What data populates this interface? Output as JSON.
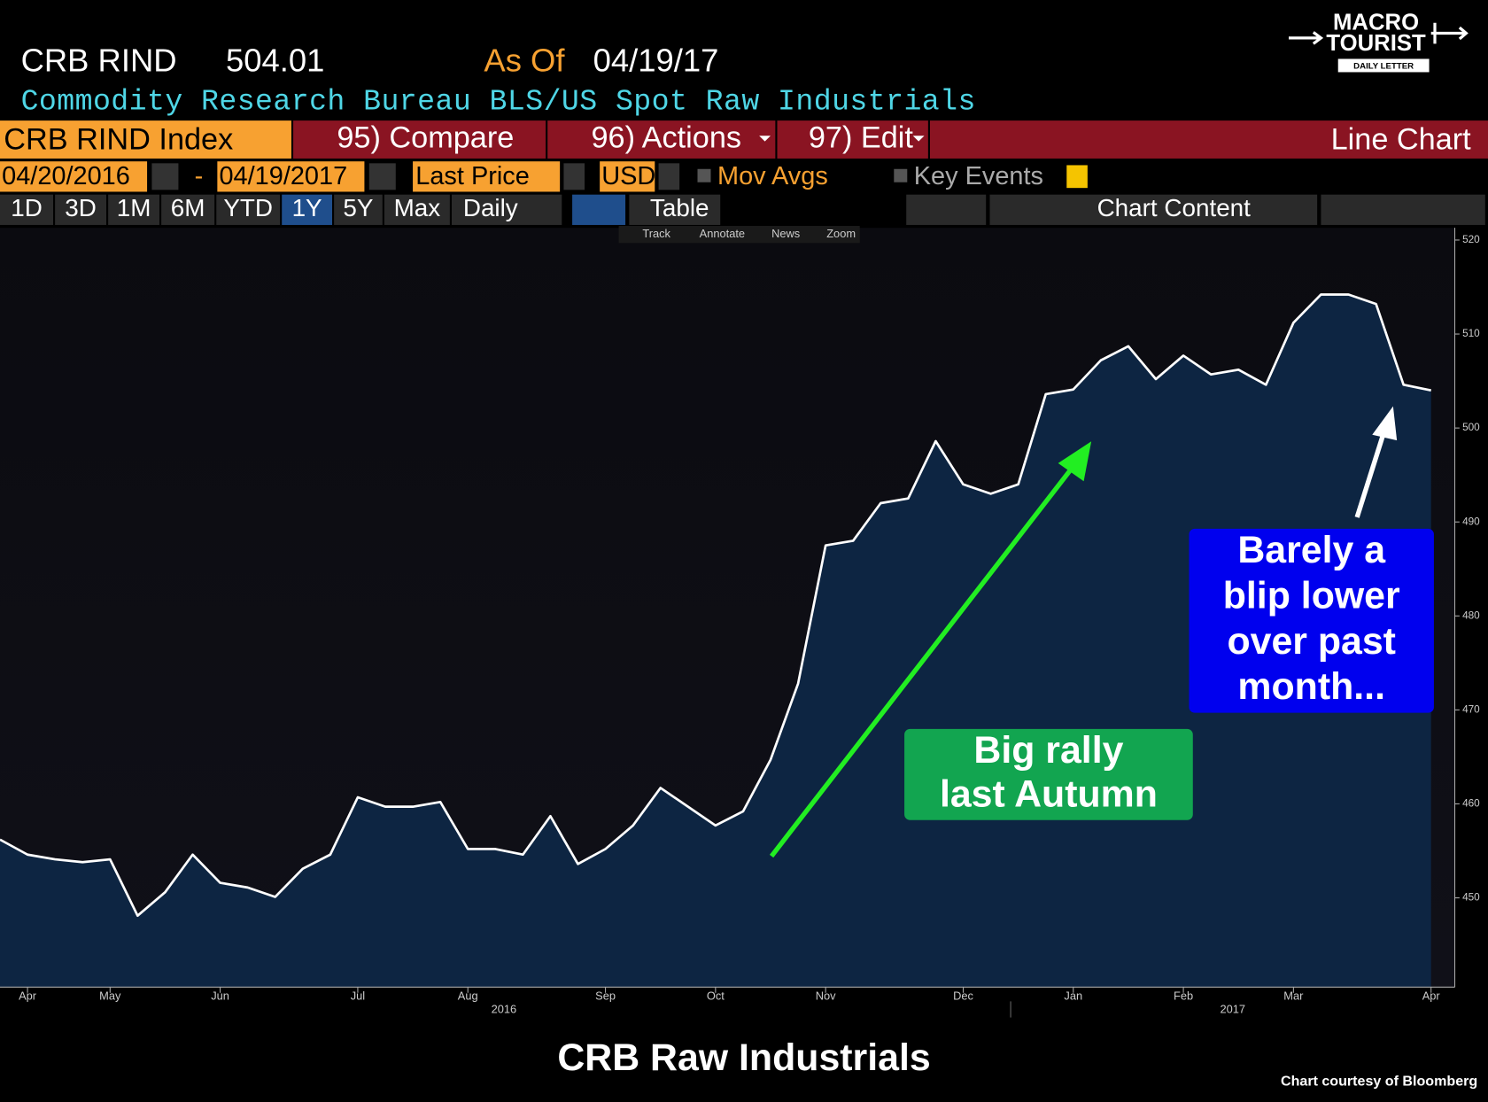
{
  "header": {
    "ticker": "CRB RIND",
    "price": 504.01,
    "as_of_label": "As Of",
    "as_of_date": "04/19/17",
    "description": "Commodity Research Bureau BLS/US Spot Raw Industrials"
  },
  "logo": {
    "line1": "MACRO",
    "line2": "TOURIST",
    "line3": "DAILY LETTER"
  },
  "toolbar": {
    "security": "CRB RIND Index",
    "compare": "95) Compare",
    "actions": "96) Actions",
    "edit": "97) Edit",
    "chart_type": "Line Chart",
    "start_date": "04/20/2016",
    "dash": "-",
    "end_date": "04/19/2017",
    "field": "Last Price",
    "currency": "USD",
    "mov_avgs": "Mov Avgs",
    "key_events": "Key Events",
    "periods": [
      "1D",
      "3D",
      "1M",
      "6M",
      "YTD",
      "1Y",
      "5Y",
      "Max"
    ],
    "frequency": "Daily",
    "table": "Table",
    "chart_content": "Chart Content",
    "tools": [
      "Track",
      "Annotate",
      "News",
      "Zoom"
    ]
  },
  "chart_data": {
    "type": "area",
    "color": "#ffffff",
    "fill": "#0d2542",
    "categories": [
      null,
      "Apr",
      null,
      null,
      "May",
      null,
      null,
      null,
      "Jun",
      null,
      null,
      null,
      null,
      "Jul",
      null,
      null,
      null,
      "Aug",
      null,
      null,
      null,
      null,
      "Sep",
      null,
      null,
      null,
      "Oct",
      null,
      null,
      null,
      "Nov",
      null,
      null,
      null,
      null,
      "Dec",
      null,
      null,
      null,
      "Jan",
      null,
      null,
      null,
      "Feb",
      null,
      null,
      null,
      "Mar",
      null,
      null,
      null,
      null,
      "Apr"
    ],
    "values": [
      456.2,
      454.6,
      454.1,
      453.8,
      454.1,
      448.1,
      450.6,
      454.6,
      451.6,
      451.1,
      450.1,
      453.1,
      454.6,
      460.7,
      459.7,
      459.7,
      460.2,
      455.2,
      455.2,
      454.6,
      458.7,
      453.6,
      455.2,
      457.7,
      461.7,
      459.7,
      457.7,
      459.2,
      464.7,
      472.8,
      487.5,
      488.0,
      492.0,
      492.5,
      498.6,
      494.0,
      493.0,
      494.0,
      503.6,
      504.1,
      507.2,
      508.7,
      505.2,
      507.7,
      505.7,
      506.2,
      504.6,
      511.2,
      514.2,
      514.2,
      513.2,
      504.6,
      504.0
    ],
    "year_labels": [
      "2016",
      "2017"
    ],
    "ylim": [
      440.5,
      521.3
    ],
    "yticks": [
      450,
      460,
      470,
      480,
      490,
      500,
      510,
      520
    ],
    "annotations": [
      {
        "lines": [
          "Big rally",
          "last Autumn"
        ],
        "color": "#12a550"
      },
      {
        "lines": [
          "Barely a",
          "blip lower",
          "over past",
          "month..."
        ],
        "color": "#0000ee"
      }
    ]
  },
  "footer": {
    "title": "CRB Raw Industrials",
    "credit": "Chart courtesy of Bloomberg"
  }
}
